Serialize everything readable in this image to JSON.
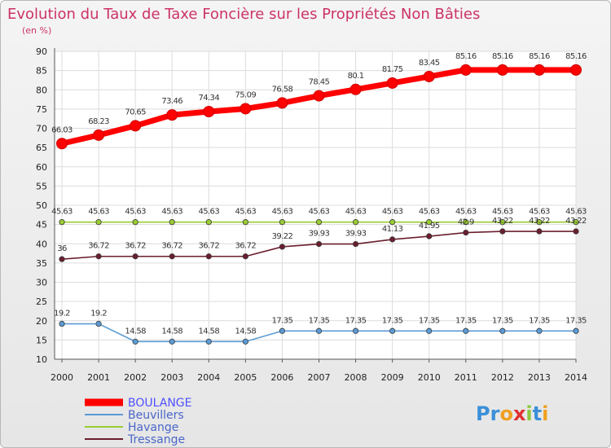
{
  "chart_data": {
    "type": "line",
    "title": "Evolution du Taux de Taxe Foncière sur les Propriétés Non Bâties",
    "subtitle": "(en %)",
    "xlabel": "",
    "ylabel": "",
    "x": [
      "2000",
      "2001",
      "2002",
      "2003",
      "2004",
      "2005",
      "2006",
      "2007",
      "2008",
      "2009",
      "2010",
      "2011",
      "2012",
      "2013",
      "2014"
    ],
    "ylim": [
      10,
      90
    ],
    "yticks": [
      "10",
      "15",
      "20",
      "25",
      "30",
      "35",
      "40",
      "45",
      "50",
      "55",
      "60",
      "65",
      "70",
      "75",
      "80",
      "85",
      "90"
    ],
    "grid": true,
    "legend": "bottom-left",
    "series": [
      {
        "name": "BOULANGE",
        "color": "#ff0000",
        "values": [
          66.03,
          68.23,
          70.65,
          73.46,
          74.34,
          75.09,
          76.58,
          78.45,
          80.1,
          81.75,
          83.45,
          85.16,
          85.16,
          85.16,
          85.16
        ],
        "labels": [
          "66.03",
          "68.23",
          "70.65",
          "73.46",
          "74.34",
          "75.09",
          "76.58",
          "78.45",
          "80.1",
          "81.75",
          "83.45",
          "85.16",
          "85.16",
          "85.16",
          "85.16"
        ]
      },
      {
        "name": "Beuvillers",
        "color": "#5b9bd5",
        "values": [
          19.2,
          19.2,
          14.58,
          14.58,
          14.58,
          14.58,
          17.35,
          17.35,
          17.35,
          17.35,
          17.35,
          17.35,
          17.35,
          17.35,
          17.35
        ],
        "labels": [
          "19.2",
          "19.2",
          "14.58",
          "14.58",
          "14.58",
          "14.58",
          "17.35",
          "17.35",
          "17.35",
          "17.35",
          "17.35",
          "17.35",
          "17.35",
          "17.35",
          "17.35"
        ]
      },
      {
        "name": "Havange",
        "color": "#9acd32",
        "values": [
          45.63,
          45.63,
          45.63,
          45.63,
          45.63,
          45.63,
          45.63,
          45.63,
          45.63,
          45.63,
          45.63,
          45.63,
          45.63,
          45.63,
          45.63
        ],
        "labels": [
          "45.63",
          "45.63",
          "45.63",
          "45.63",
          "45.63",
          "45.63",
          "45.63",
          "45.63",
          "45.63",
          "45.63",
          "45.63",
          "45.63",
          "45.63",
          "45.63",
          "45.63"
        ]
      },
      {
        "name": "Tressange",
        "color": "#6b1e2e",
        "values": [
          36,
          36.72,
          36.72,
          36.72,
          36.72,
          36.72,
          39.22,
          39.93,
          39.93,
          41.13,
          41.95,
          42.9,
          43.22,
          43.22,
          43.22
        ],
        "labels": [
          "36",
          "36.72",
          "36.72",
          "36.72",
          "36.72",
          "36.72",
          "39.22",
          "39.93",
          "39.93",
          "41.13",
          "41.95",
          "42.9",
          "43.22",
          "43.22",
          "43.22"
        ]
      }
    ]
  },
  "branding": {
    "logo_text": "Proxiti"
  }
}
